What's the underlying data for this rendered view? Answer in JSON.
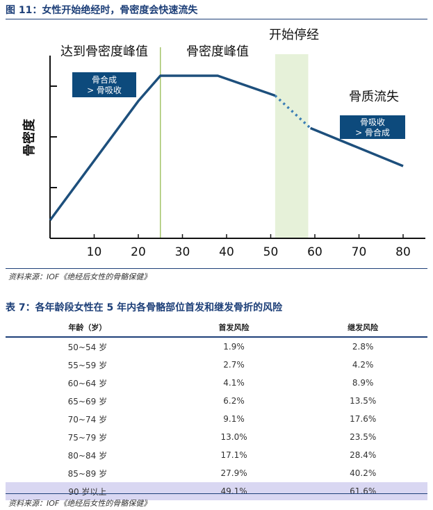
{
  "figure": {
    "title": "图 11：女性开始绝经时，骨密度会快速流失",
    "source": "资料来源：IOF《绝经后女性的骨骼保健》"
  },
  "chart_data": {
    "type": "line",
    "title": "",
    "xlabel": "",
    "ylabel": "骨密度",
    "x_ticks": [
      10,
      20,
      30,
      40,
      50,
      60,
      70,
      80
    ],
    "xlim": [
      0,
      80
    ],
    "y_ticks_count": 3,
    "grid": false,
    "series": [
      {
        "solid_segments": [
          [
            [
              0,
              0.1
            ],
            [
              20,
              0.76
            ],
            [
              25,
              0.9
            ],
            [
              38,
              0.9
            ],
            [
              51,
              0.79
            ]
          ],
          [
            [
              59,
              0.61
            ],
            [
              80,
              0.4
            ]
          ]
        ],
        "dotted_segments": [
          [
            [
              51,
              0.79
            ],
            [
              59,
              0.61
            ]
          ]
        ]
      }
    ],
    "shaded_region": {
      "x": [
        51,
        58.5
      ],
      "label": "开始停经"
    },
    "vertical_line": {
      "x": 25
    },
    "annotations": {
      "region1": "达到骨密度峰值",
      "region2": "骨密度峰值",
      "region3": "骨质流失",
      "box1": [
        "骨合成",
        "> 骨吸收"
      ],
      "box2": [
        "骨吸收",
        "> 骨合成"
      ]
    },
    "colors": {
      "line": "#1d4f7c",
      "shade": "#e6f1d9",
      "vline": "#a4c46a",
      "box": "#0d4a7c"
    }
  },
  "table": {
    "title": "表 7：各年龄段女性在 5 年内各骨骼部位首发和继发骨折的风险",
    "headers": [
      "年龄（岁）",
      "首发风险",
      "继发风险"
    ],
    "rows": [
      [
        "50~54 岁",
        "1.9%",
        "2.8%"
      ],
      [
        "55~59 岁",
        "2.7%",
        "4.2%"
      ],
      [
        "60~64 岁",
        "4.1%",
        "8.9%"
      ],
      [
        "65~69 岁",
        "6.2%",
        "13.5%"
      ],
      [
        "70~74 岁",
        "9.1%",
        "17.6%"
      ],
      [
        "75~79 岁",
        "13.0%",
        "23.5%"
      ],
      [
        "80~84 岁",
        "17.1%",
        "28.4%"
      ],
      [
        "85~89 岁",
        "27.9%",
        "40.2%"
      ],
      [
        "90 岁以上",
        "49.1%",
        "61.6%"
      ]
    ],
    "highlight_color": "#d9d7f2",
    "source": "资料来源：IOF《绝经后女性的骨骼保健》"
  }
}
